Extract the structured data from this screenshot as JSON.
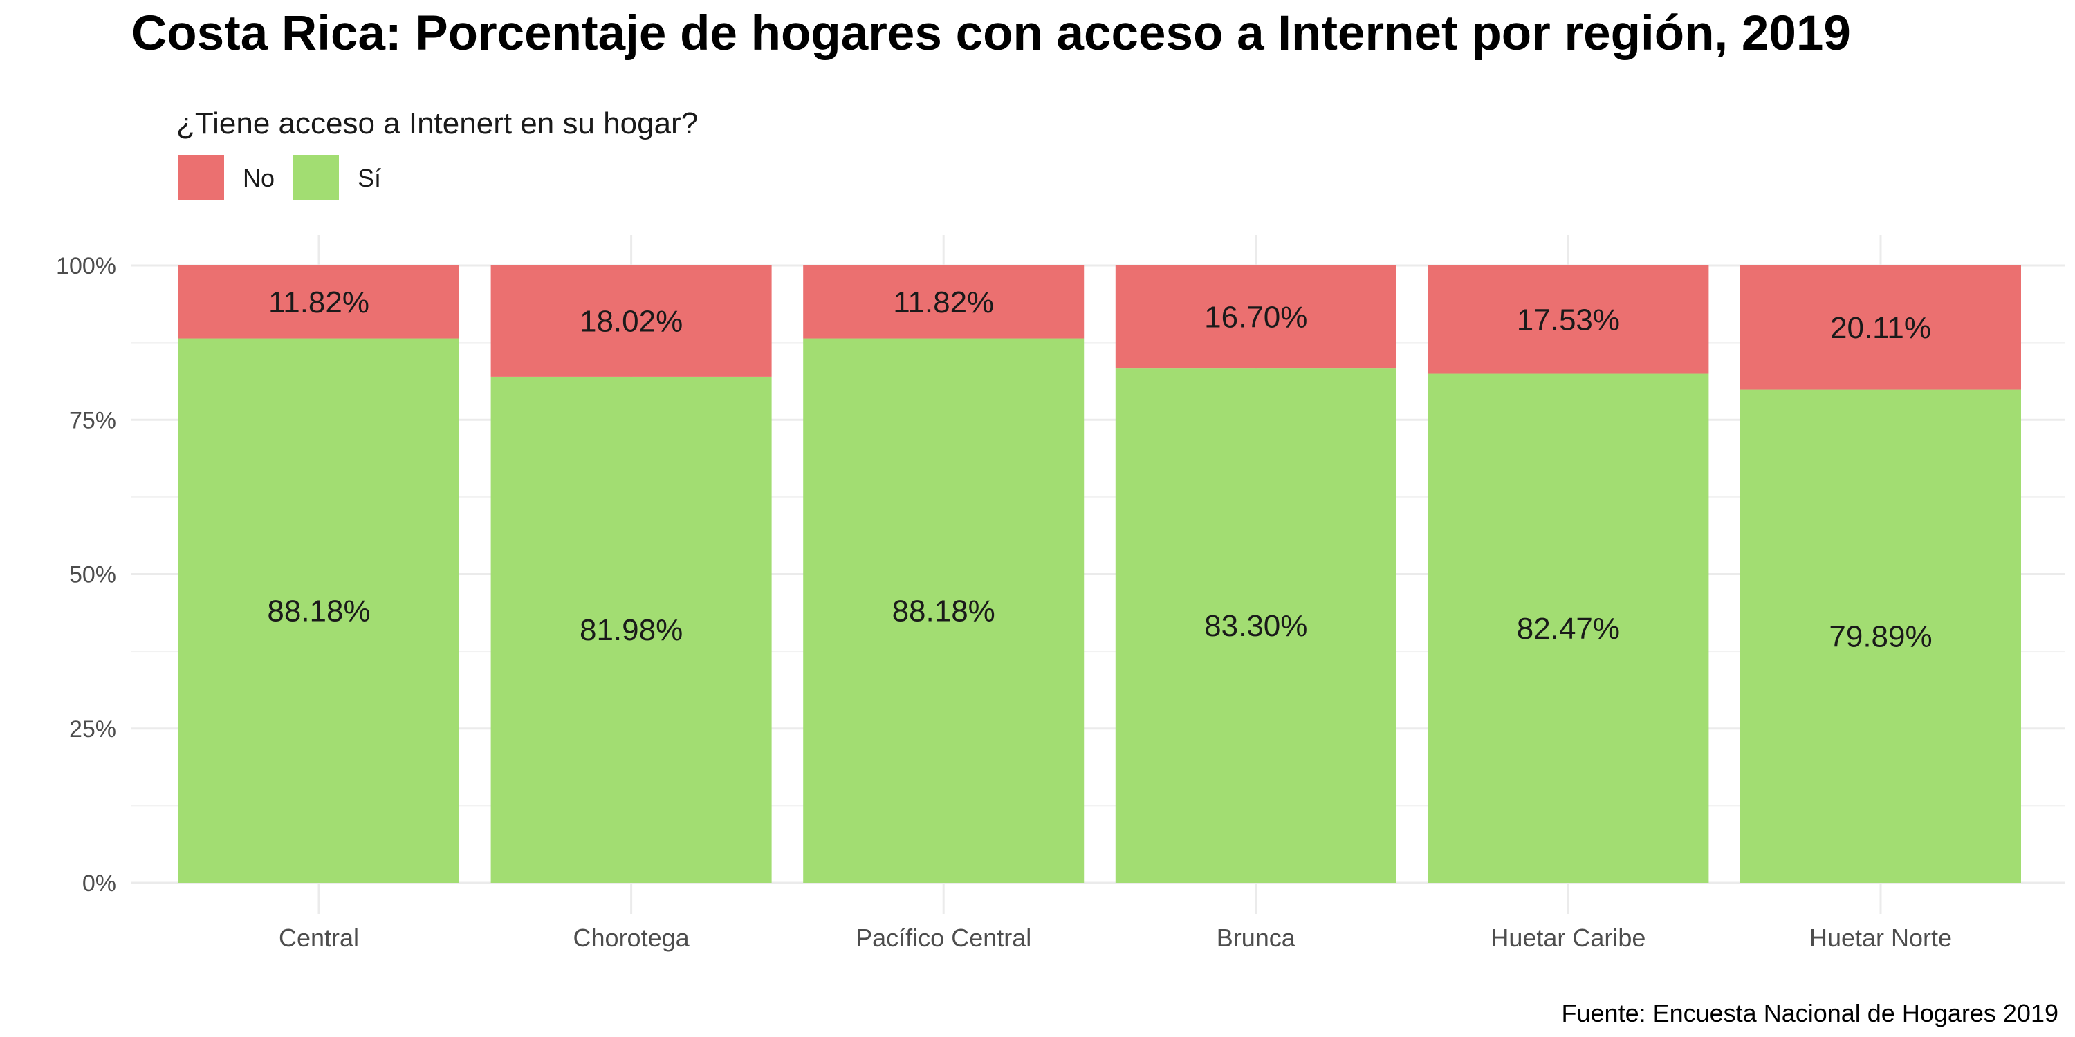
{
  "chart_data": {
    "type": "bar",
    "stacked": true,
    "title": "Costa Rica: Porcentaje de hogares con acceso a Internet por región, 2019",
    "legend_title": "¿Tiene acceso a Intenert en su hogar?",
    "legend_position": "top-left",
    "caption": "Fuente: Encuesta Nacional de Hogares 2019",
    "categories": [
      "Central",
      "Chorotega",
      "Pacífico Central",
      "Brunca",
      "Huetar Caribe",
      "Huetar Norte"
    ],
    "series": [
      {
        "name": "No",
        "color": "#eb7070",
        "values": [
          11.82,
          18.02,
          11.82,
          16.7,
          17.53,
          20.11
        ],
        "labels": [
          "11.82%",
          "18.02%",
          "11.82%",
          "16.70%",
          "17.53%",
          "20.11%"
        ]
      },
      {
        "name": "Sí",
        "color": "#a2dd72",
        "values": [
          88.18,
          81.98,
          88.18,
          83.3,
          82.47,
          79.89
        ],
        "labels": [
          "88.18%",
          "81.98%",
          "88.18%",
          "83.30%",
          "82.47%",
          "79.89%"
        ]
      }
    ],
    "y_ticks": [
      "0%",
      "25%",
      "50%",
      "75%",
      "100%"
    ],
    "ylim": [
      0,
      100
    ],
    "grid": true
  }
}
